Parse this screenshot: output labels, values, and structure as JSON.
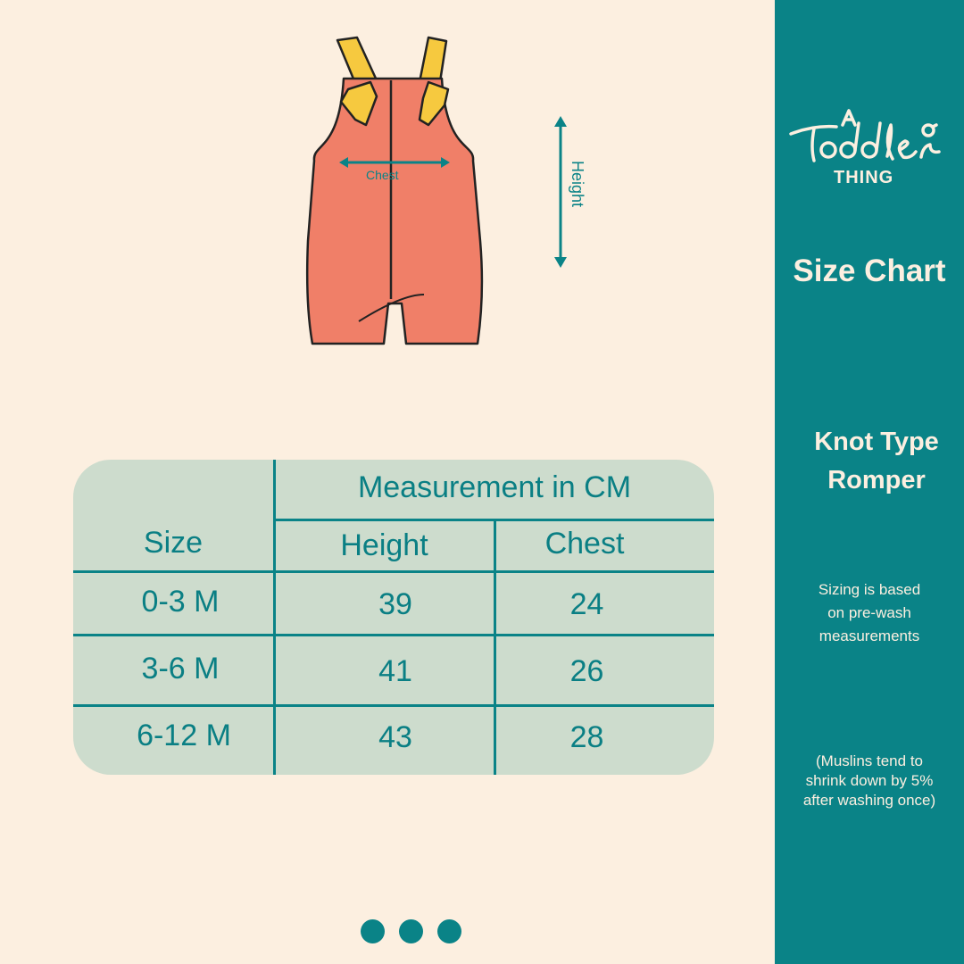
{
  "brand": {
    "logo_text": "A Toddler Thing"
  },
  "sidebar": {
    "title": "Size Chart",
    "product_line1": "Knot Type",
    "product_line2": "Romper",
    "note1": [
      "Sizing is based",
      "on pre-wash",
      "measurements"
    ],
    "note2": [
      "(Muslins tend to",
      "shrink down by 5%",
      "after washing once)"
    ]
  },
  "illustration": {
    "chest_label": "Chest",
    "height_label": "Height"
  },
  "table": {
    "size_header": "Size",
    "group_header": "Measurement in CM",
    "columns": [
      "Height",
      "Chest"
    ],
    "rows": [
      {
        "size": "0-3 M",
        "height": "39",
        "chest": "24"
      },
      {
        "size": "3-6 M",
        "height": "41",
        "chest": "26"
      },
      {
        "size": "6-12 M",
        "height": "43",
        "chest": "28"
      }
    ]
  },
  "colors": {
    "teal": "#0a8387",
    "background": "#fcefe0",
    "table": "#cddccd",
    "romper": "#f07f68",
    "strap": "#f6c93f"
  },
  "pagination": {
    "pages": 3
  }
}
